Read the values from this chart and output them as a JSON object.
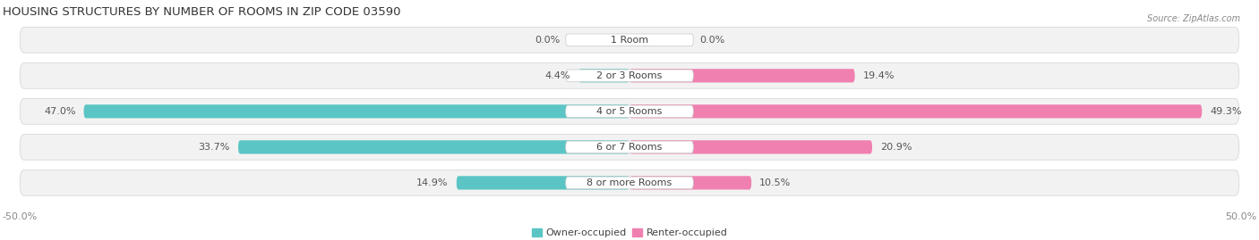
{
  "title": "HOUSING STRUCTURES BY NUMBER OF ROOMS IN ZIP CODE 03590",
  "source": "Source: ZipAtlas.com",
  "categories": [
    "1 Room",
    "2 or 3 Rooms",
    "4 or 5 Rooms",
    "6 or 7 Rooms",
    "8 or more Rooms"
  ],
  "owner_values": [
    0.0,
    4.4,
    47.0,
    33.7,
    14.9
  ],
  "renter_values": [
    0.0,
    19.4,
    49.3,
    20.9,
    10.5
  ],
  "owner_color": "#5BC5C5",
  "renter_color": "#F080B0",
  "max_val": 50.0,
  "legend_owner": "Owner-occupied",
  "legend_renter": "Renter-occupied",
  "title_fontsize": 9.5,
  "label_fontsize": 8,
  "category_fontsize": 8,
  "axis_fontsize": 8
}
